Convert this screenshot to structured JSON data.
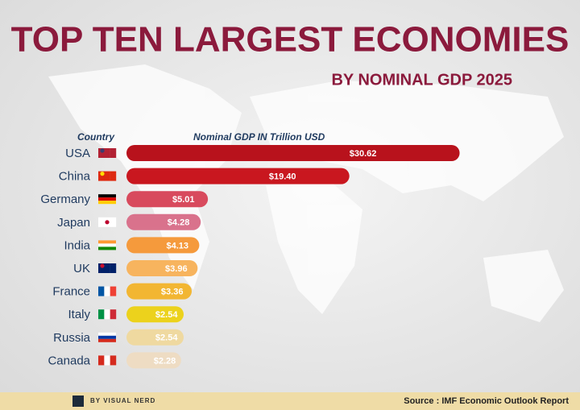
{
  "chart_data": {
    "type": "bar",
    "title": "TOP TEN LARGEST ECONOMIES",
    "subtitle": "BY NOMINAL GDP 2025",
    "category_header": "Country",
    "axis_label": "Nominal GDP IN Trillion USD",
    "categories": [
      "USA",
      "China",
      "Germany",
      "Japan",
      "India",
      "UK",
      "France",
      "Italy",
      "Russia",
      "Canada"
    ],
    "values": [
      30.62,
      19.4,
      5.01,
      4.28,
      4.13,
      3.96,
      3.36,
      2.54,
      2.54,
      2.28
    ],
    "value_labels": [
      "$30.62",
      "$19.40",
      "$5.01",
      "$4.28",
      "$4.13",
      "$3.96",
      "$3.36",
      "$2.54",
      "$2.54",
      "$2.28"
    ],
    "colors": [
      "#b8121c",
      "#c9171f",
      "#d84a5d",
      "#d9728c",
      "#f59a3c",
      "#f7b45e",
      "#f2b632",
      "#ecd21c",
      "#efd9a0",
      "#eedcc3"
    ],
    "credit": "BY VISUAL NERD",
    "source": "Source : IMF Economic Outlook Report"
  }
}
